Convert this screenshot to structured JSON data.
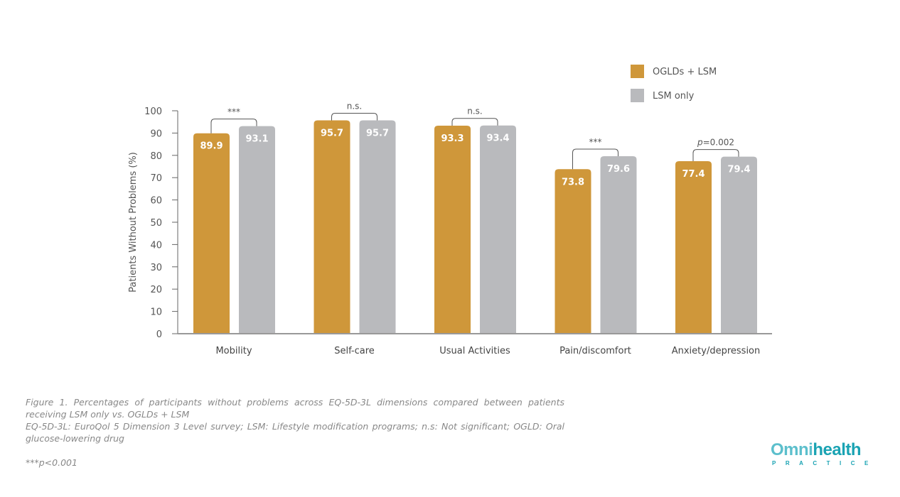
{
  "chart_data": {
    "type": "bar",
    "title": "",
    "xlabel": "",
    "ylabel": "Patients Without Problems (%)",
    "ylim": [
      0,
      100
    ],
    "yticks": [
      0,
      10,
      20,
      30,
      40,
      50,
      60,
      70,
      80,
      90,
      100
    ],
    "grid": false,
    "legend_position": "top-right",
    "categories": [
      "Mobility",
      "Self-care",
      "Usual Activities",
      "Pain/discomfort",
      "Anxiety/depression"
    ],
    "series": [
      {
        "name": "OGLDs + LSM",
        "color": "#cf973a",
        "values": [
          89.9,
          95.7,
          93.3,
          73.8,
          77.4
        ]
      },
      {
        "name": "LSM only",
        "color": "#b9babd",
        "values": [
          93.1,
          95.7,
          93.4,
          79.6,
          79.4
        ]
      }
    ],
    "annotations": [
      {
        "category": "Mobility",
        "text": "***"
      },
      {
        "category": "Self-care",
        "text": "n.s."
      },
      {
        "category": "Usual Activities",
        "text": "n.s."
      },
      {
        "category": "Pain/discomfort",
        "text": "***"
      },
      {
        "category": "Anxiety/depression",
        "text": "p=0.002"
      }
    ]
  },
  "caption": {
    "line1": "Figure 1. Percentages of participants without problems across EQ-5D-3L dimensions compared between patients receiving LSM only vs. OGLDs + LSM",
    "line2": "EQ-5D-3L: EuroQol 5 Dimension 3 Level survey; LSM: Lifestyle modification programs; n.s: Not significant; OGLD: Oral glucose-lowering drug",
    "footnote": "***p<0.001"
  },
  "logo": {
    "omni": "Omni",
    "health": "health",
    "sub": "PRACTICE"
  }
}
